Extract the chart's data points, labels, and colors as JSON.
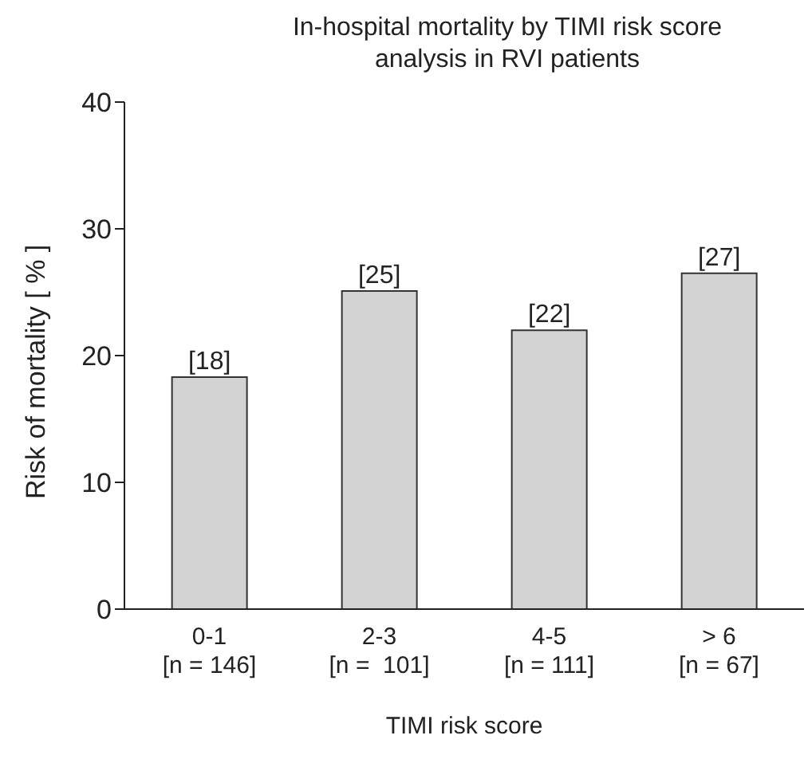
{
  "chart_data": {
    "type": "bar",
    "title": "In-hospital mortality  by TIMI risk score analysis in RVI patients",
    "xlabel": "TIMI risk score",
    "ylabel": "Risk of mortality [ % ]",
    "categories": [
      "0-1\n[n = 146]",
      "2-3\n[n =  101]",
      "4-5\n[n = 111]",
      "> 6\n[n = 67]"
    ],
    "values": [
      18.3,
      25.1,
      22,
      26.5
    ],
    "value_labels": [
      "[18]",
      "[25]",
      "[22]",
      "[27]"
    ],
    "color": "#d3d3d3",
    "ylim": [
      0,
      40
    ],
    "yticks": [
      0,
      10,
      20,
      30,
      40
    ],
    "grid": false,
    "legend": false
  }
}
